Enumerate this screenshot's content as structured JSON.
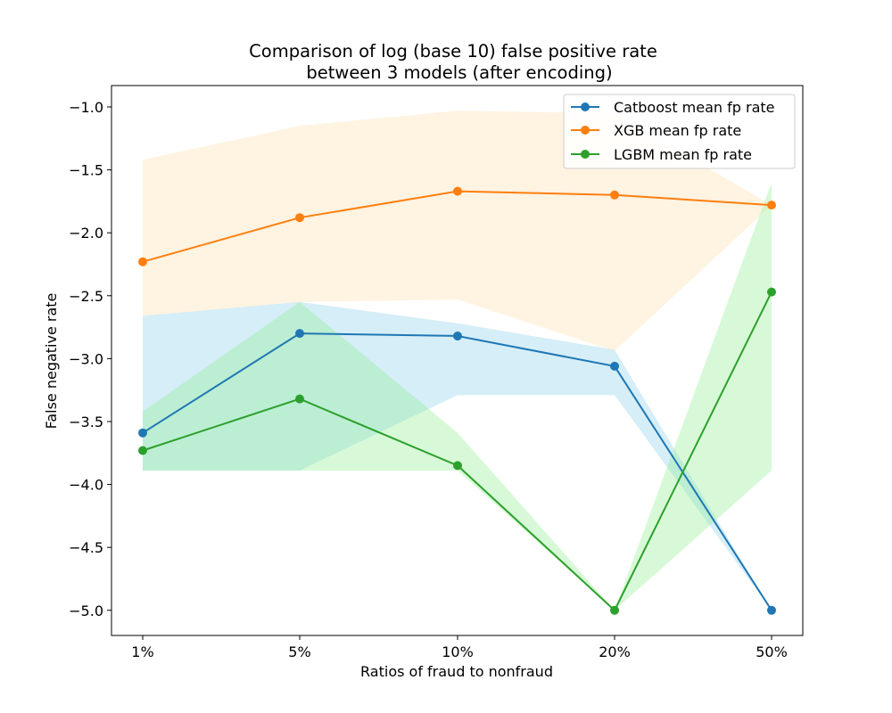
{
  "chart_data": {
    "type": "line",
    "title_lines": [
      "Comparison of log (base 10) false positive rate",
      "between 3 models (after encoding)"
    ],
    "xlabel": "Ratios of fraud to nonfraud",
    "ylabel": "False negative rate",
    "categories": [
      "1%",
      "5%",
      "10%",
      "20%",
      "50%"
    ],
    "ylim": [
      -5.2,
      -0.83
    ],
    "yticks": [
      -1.0,
      -1.5,
      -2.0,
      -2.5,
      -3.0,
      -3.5,
      -4.0,
      -4.5,
      -5.0
    ],
    "ytick_labels": [
      "−1.0",
      "−1.5",
      "−2.0",
      "−2.5",
      "−3.0",
      "−3.5",
      "−4.0",
      "−4.5",
      "−5.0"
    ],
    "grid": false,
    "legend_position": "top-right",
    "series": [
      {
        "name": "Catboost mean fp rate",
        "color": "#1f77b4",
        "band_color": "#87ceeb",
        "values": [
          -3.59,
          -2.8,
          -2.82,
          -3.06,
          -5.0
        ],
        "band_lower": [
          -3.89,
          -3.89,
          -3.29,
          -3.29,
          -5.0
        ],
        "band_upper": [
          -2.66,
          -2.55,
          -2.72,
          -2.93,
          -5.0
        ]
      },
      {
        "name": "XGB mean fp rate",
        "color": "#ff7f0e",
        "band_color": "#ffdead",
        "values": [
          -2.23,
          -1.88,
          -1.67,
          -1.7,
          -1.78
        ],
        "band_lower": [
          -2.66,
          -2.55,
          -2.53,
          -2.94,
          -1.78
        ],
        "band_upper": [
          -1.42,
          -1.15,
          -1.03,
          -1.05,
          -1.78
        ]
      },
      {
        "name": "LGBM mean fp rate",
        "color": "#2ca02c",
        "band_color": "#90ee90",
        "values": [
          -3.73,
          -3.32,
          -3.85,
          -5.0,
          -2.47
        ],
        "band_lower": [
          -3.89,
          -3.89,
          -3.89,
          -5.0,
          -3.89
        ],
        "band_upper": [
          -3.42,
          -2.55,
          -3.59,
          -5.0,
          -1.6
        ]
      }
    ]
  }
}
